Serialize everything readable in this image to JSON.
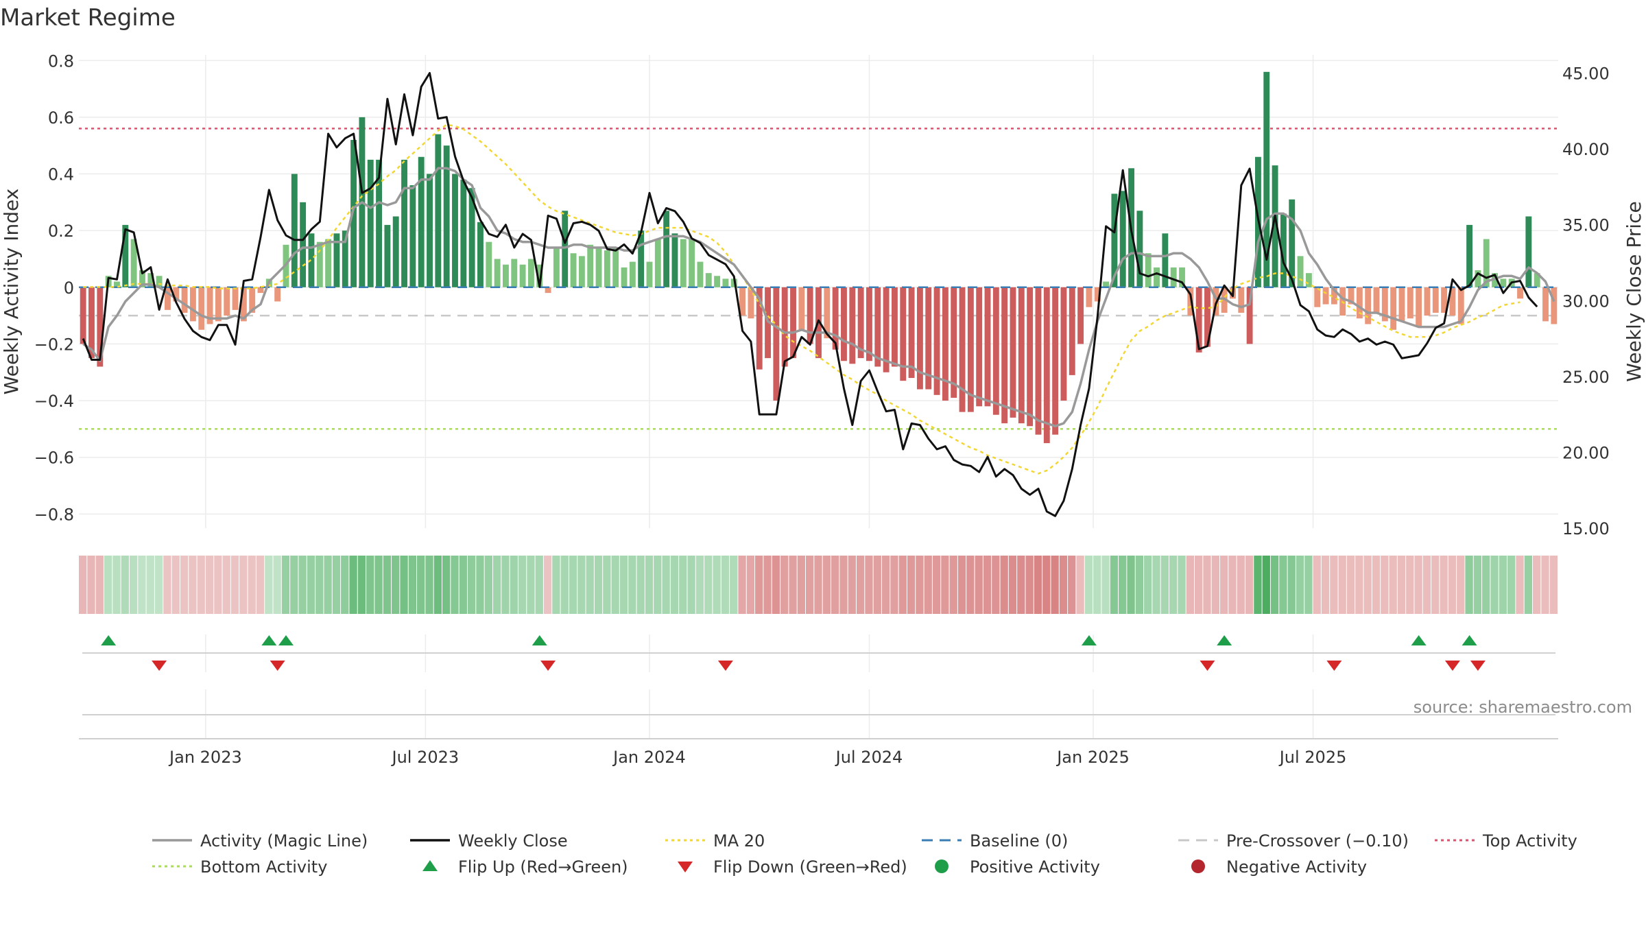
{
  "title": "Market Regime",
  "source": "source: sharemaestro.com",
  "chart_data": {
    "type": "bar",
    "title": "Market Regime",
    "x_ticks": [
      "Jan 2023",
      "Jul 2023",
      "Jan 2024",
      "Jul 2024",
      "Jan 2025",
      "Jul 2025"
    ],
    "left_axis": {
      "label": "Weekly Activity Index",
      "range": [
        -0.85,
        0.82
      ],
      "ticks": [
        "0.8",
        "0.6",
        "0.4",
        "0.2",
        "0",
        "−0.2",
        "−0.4",
        "−0.6",
        "−0.8"
      ],
      "tick_values": [
        0.8,
        0.6,
        0.4,
        0.2,
        0,
        -0.2,
        -0.4,
        -0.6,
        -0.8
      ]
    },
    "right_axis": {
      "label": "Weekly Close Price",
      "range": [
        15,
        46.2
      ],
      "ticks": [
        "45.00",
        "40.00",
        "35.00",
        "30.00",
        "25.00",
        "20.00",
        "15.00"
      ],
      "tick_values": [
        45,
        40,
        35,
        30,
        25,
        20,
        15
      ]
    },
    "reference_lines": {
      "top_activity": 0.56,
      "bottom_activity": -0.5,
      "baseline": 0,
      "pre_crossover": -0.1
    },
    "grid": true,
    "legend_position": "bottom",
    "colors": {
      "pos_dark": "#2e8b57",
      "pos_light": "#7fc47f",
      "neg_dark": "#cd5c5c",
      "neg_light": "#e9967a",
      "magic": "#999999",
      "close": "#111111",
      "ma20": "#f2d633",
      "baseline": "#3a7db5",
      "precross": "#c8c8c8",
      "top": "#d9546e",
      "bottom": "#a9dc5a",
      "flip_up": "#1f9e4a",
      "flip_down": "#d62728",
      "pos_dot": "#1f9e4a",
      "neg_dot": "#b3262e"
    },
    "activity": [
      -0.2,
      -0.25,
      -0.28,
      0.04,
      0.02,
      0.22,
      0.17,
      0.06,
      0.05,
      0.04,
      -0.08,
      -0.05,
      -0.09,
      -0.12,
      -0.15,
      -0.13,
      -0.12,
      -0.1,
      -0.08,
      -0.12,
      -0.09,
      -0.02,
      0.03,
      -0.05,
      0.15,
      0.4,
      0.3,
      0.19,
      0.16,
      0.17,
      0.19,
      0.2,
      0.52,
      0.6,
      0.45,
      0.45,
      0.22,
      0.25,
      0.45,
      0.36,
      0.46,
      0.4,
      0.54,
      0.5,
      0.4,
      0.38,
      0.35,
      0.23,
      0.16,
      0.1,
      0.08,
      0.1,
      0.08,
      0.1,
      0.08,
      -0.02,
      0.14,
      0.27,
      0.12,
      0.11,
      0.15,
      0.14,
      0.13,
      0.14,
      0.07,
      0.09,
      0.2,
      0.09,
      0.17,
      0.27,
      0.19,
      0.17,
      0.17,
      0.09,
      0.05,
      0.04,
      0.03,
      0.03,
      -0.1,
      -0.11,
      -0.29,
      -0.25,
      -0.4,
      -0.28,
      -0.25,
      -0.15,
      -0.2,
      -0.25,
      -0.18,
      -0.22,
      -0.26,
      -0.27,
      -0.25,
      -0.26,
      -0.28,
      -0.3,
      -0.28,
      -0.33,
      -0.32,
      -0.36,
      -0.36,
      -0.38,
      -0.4,
      -0.39,
      -0.44,
      -0.44,
      -0.42,
      -0.42,
      -0.45,
      -0.48,
      -0.46,
      -0.48,
      -0.49,
      -0.52,
      -0.55,
      -0.52,
      -0.4,
      -0.31,
      -0.2,
      -0.07,
      -0.05,
      0.02,
      0.33,
      0.34,
      0.42,
      0.27,
      0.12,
      0.07,
      0.19,
      0.07,
      0.07,
      -0.1,
      -0.23,
      -0.21,
      -0.1,
      -0.09,
      -0.04,
      -0.09,
      -0.2,
      0.46,
      0.76,
      0.43,
      0.26,
      0.31,
      0.11,
      0.05,
      -0.07,
      -0.06,
      -0.06,
      -0.1,
      -0.06,
      -0.11,
      -0.13,
      -0.09,
      -0.12,
      -0.15,
      -0.12,
      -0.11,
      -0.14,
      -0.1,
      -0.09,
      -0.09,
      -0.1,
      -0.13,
      0.22,
      0.06,
      0.17,
      0.05,
      0.03,
      0.03,
      -0.04,
      0.25,
      0.05,
      -0.12,
      -0.13
    ],
    "weekly_close": [
      27.5,
      26.1,
      26.1,
      31.5,
      31.4,
      34.7,
      34.5,
      31.8,
      32.2,
      29.4,
      31.4,
      29.9,
      28.8,
      28.0,
      27.6,
      27.4,
      28.4,
      28.4,
      27.1,
      31.3,
      31.4,
      34.2,
      37.3,
      35.3,
      34.3,
      34.0,
      34.0,
      34.7,
      35.2,
      41.0,
      40.1,
      40.7,
      41.0,
      37.1,
      37.4,
      38.1,
      43.3,
      40.3,
      43.6,
      40.9,
      44.1,
      45.0,
      42.0,
      42.1,
      39.5,
      37.9,
      36.8,
      35.3,
      34.4,
      34.2,
      35.0,
      33.5,
      34.4,
      34.0,
      30.9,
      35.6,
      35.4,
      33.8,
      35.1,
      35.2,
      35.0,
      34.6,
      33.4,
      33.3,
      33.7,
      33.1,
      34.5,
      37.1,
      35.1,
      36.1,
      35.9,
      35.2,
      34.1,
      33.8,
      33.0,
      32.7,
      32.4,
      31.6,
      28.0,
      27.3,
      22.5,
      22.5,
      22.5,
      26.0,
      26.3,
      27.6,
      27.1,
      28.7,
      27.8,
      27.2,
      24.2,
      21.8,
      24.7,
      25.4,
      24.0,
      22.7,
      22.8,
      20.2,
      21.9,
      21.8,
      20.9,
      20.2,
      20.4,
      19.5,
      19.2,
      19.1,
      18.7,
      19.7,
      18.4,
      18.9,
      18.5,
      17.6,
      17.2,
      17.6,
      16.1,
      15.8,
      16.8,
      18.9,
      21.8,
      24.2,
      28.9,
      34.9,
      34.5,
      38.6,
      34.6,
      31.8,
      31.6,
      31.8,
      31.6,
      31.4,
      31.2,
      30.4,
      26.8,
      27.0,
      29.8,
      31.0,
      30.3,
      37.6,
      38.7,
      35.4,
      32.7,
      35.6,
      32.5,
      31.4,
      29.7,
      29.3,
      28.1,
      27.7,
      27.6,
      28.1,
      27.8,
      27.3,
      27.5,
      27.1,
      27.3,
      27.1,
      26.2,
      26.3,
      26.4,
      27.2,
      28.2,
      28.5,
      31.4,
      30.7,
      31.0,
      31.8,
      31.5,
      31.7,
      30.5,
      31.2,
      31.3,
      30.2,
      29.6
    ],
    "magic_line": [
      -0.2,
      -0.22,
      -0.26,
      -0.14,
      -0.1,
      -0.05,
      -0.02,
      0.01,
      0.01,
      0.0,
      -0.02,
      -0.04,
      -0.06,
      -0.08,
      -0.1,
      -0.11,
      -0.11,
      -0.11,
      -0.1,
      -0.11,
      -0.08,
      -0.06,
      0.02,
      0.05,
      0.08,
      0.12,
      0.14,
      0.14,
      0.15,
      0.16,
      0.16,
      0.16,
      0.28,
      0.3,
      0.28,
      0.3,
      0.29,
      0.3,
      0.35,
      0.35,
      0.38,
      0.38,
      0.42,
      0.42,
      0.41,
      0.38,
      0.36,
      0.28,
      0.25,
      0.2,
      0.19,
      0.17,
      0.16,
      0.16,
      0.15,
      0.14,
      0.14,
      0.14,
      0.15,
      0.15,
      0.14,
      0.14,
      0.14,
      0.14,
      0.13,
      0.13,
      0.15,
      0.16,
      0.17,
      0.18,
      0.18,
      0.18,
      0.17,
      0.16,
      0.14,
      0.12,
      0.1,
      0.08,
      0.04,
      0.0,
      -0.04,
      -0.12,
      -0.14,
      -0.16,
      -0.16,
      -0.15,
      -0.16,
      -0.16,
      -0.16,
      -0.17,
      -0.19,
      -0.2,
      -0.22,
      -0.23,
      -0.25,
      -0.26,
      -0.27,
      -0.28,
      -0.28,
      -0.3,
      -0.31,
      -0.32,
      -0.33,
      -0.34,
      -0.36,
      -0.38,
      -0.39,
      -0.4,
      -0.41,
      -0.42,
      -0.43,
      -0.44,
      -0.45,
      -0.47,
      -0.48,
      -0.49,
      -0.48,
      -0.44,
      -0.34,
      -0.22,
      -0.12,
      -0.04,
      0.04,
      0.1,
      0.12,
      0.12,
      0.11,
      0.11,
      0.11,
      0.12,
      0.12,
      0.1,
      0.07,
      0.02,
      -0.04,
      -0.04,
      -0.06,
      -0.07,
      -0.06,
      0.16,
      0.24,
      0.26,
      0.26,
      0.24,
      0.2,
      0.12,
      0.08,
      0.03,
      -0.01,
      -0.04,
      -0.05,
      -0.07,
      -0.09,
      -0.09,
      -0.1,
      -0.11,
      -0.12,
      -0.13,
      -0.14,
      -0.14,
      -0.14,
      -0.14,
      -0.13,
      -0.12,
      -0.07,
      -0.01,
      0.02,
      0.03,
      0.04,
      0.04,
      0.03,
      0.07,
      0.05,
      0.02,
      -0.05
    ],
    "ma20": [
      30.9,
      30.9,
      30.9,
      30.9,
      30.9,
      31.0,
      31.1,
      31.1,
      31.1,
      31.1,
      31.0,
      31.0,
      31.0,
      30.9,
      30.9,
      30.9,
      30.8,
      30.8,
      30.8,
      30.8,
      30.8,
      30.9,
      31.0,
      31.1,
      31.5,
      31.9,
      32.3,
      32.7,
      33.3,
      34.0,
      34.8,
      35.5,
      36.2,
      36.9,
      37.3,
      37.7,
      38.2,
      38.6,
      39.2,
      39.7,
      40.2,
      40.7,
      41.2,
      41.6,
      41.5,
      41.3,
      40.9,
      40.5,
      40.0,
      39.5,
      39.0,
      38.4,
      37.8,
      37.2,
      36.6,
      36.2,
      35.9,
      35.7,
      35.5,
      35.3,
      35.1,
      34.9,
      34.7,
      34.5,
      34.4,
      34.3,
      34.4,
      34.6,
      34.8,
      34.8,
      34.8,
      34.8,
      34.6,
      34.4,
      34.2,
      33.8,
      33.2,
      32.4,
      31.6,
      30.7,
      29.8,
      29.0,
      28.4,
      27.7,
      27.3,
      27.0,
      26.7,
      26.3,
      25.9,
      25.5,
      25.1,
      24.8,
      24.4,
      24.1,
      23.8,
      23.4,
      23.1,
      22.8,
      22.5,
      22.1,
      21.8,
      21.5,
      21.2,
      20.9,
      20.6,
      20.3,
      20.1,
      19.8,
      19.6,
      19.4,
      19.2,
      19.0,
      18.8,
      18.6,
      18.8,
      19.2,
      19.7,
      20.3,
      21.1,
      22.0,
      23.0,
      24.2,
      25.3,
      26.4,
      27.4,
      28.0,
      28.3,
      28.7,
      29.0,
      29.2,
      29.4,
      29.6,
      29.5,
      29.5,
      29.6,
      30.2,
      30.8,
      31.1,
      31.3,
      31.5,
      31.6,
      31.8,
      31.8,
      31.6,
      31.4,
      31.1,
      30.8,
      30.5,
      30.2,
      29.9,
      29.5,
      29.2,
      28.9,
      28.6,
      28.3,
      28.0,
      27.8,
      27.6,
      27.6,
      27.6,
      27.7,
      27.9,
      28.2,
      28.4,
      28.6,
      28.9,
      29.1,
      29.4,
      29.7,
      29.8,
      29.9
    ],
    "regime": [
      -0.3,
      -0.3,
      -0.3,
      0.2,
      0.2,
      0.25,
      0.2,
      0.15,
      0.15,
      0.15,
      -0.2,
      -0.2,
      -0.2,
      -0.2,
      -0.2,
      -0.2,
      -0.2,
      -0.2,
      -0.2,
      -0.2,
      -0.2,
      -0.2,
      0.15,
      0.15,
      0.4,
      0.4,
      0.4,
      0.4,
      0.4,
      0.4,
      0.4,
      0.45,
      0.65,
      0.65,
      0.55,
      0.55,
      0.55,
      0.55,
      0.6,
      0.55,
      0.55,
      0.55,
      0.65,
      0.6,
      0.5,
      0.5,
      0.45,
      0.45,
      0.4,
      0.35,
      0.35,
      0.35,
      0.3,
      0.3,
      0.3,
      -0.2,
      0.3,
      0.3,
      0.3,
      0.3,
      0.3,
      0.3,
      0.3,
      0.3,
      0.3,
      0.3,
      0.3,
      0.3,
      0.3,
      0.3,
      0.3,
      0.3,
      0.3,
      0.25,
      0.25,
      0.25,
      0.25,
      0.25,
      -0.4,
      -0.4,
      -0.5,
      -0.5,
      -0.55,
      -0.45,
      -0.45,
      -0.45,
      -0.45,
      -0.45,
      -0.45,
      -0.45,
      -0.45,
      -0.45,
      -0.45,
      -0.45,
      -0.45,
      -0.45,
      -0.45,
      -0.5,
      -0.5,
      -0.5,
      -0.5,
      -0.5,
      -0.5,
      -0.5,
      -0.55,
      -0.55,
      -0.55,
      -0.55,
      -0.55,
      -0.6,
      -0.6,
      -0.6,
      -0.6,
      -0.65,
      -0.65,
      -0.65,
      -0.6,
      -0.55,
      -0.25,
      0.2,
      0.2,
      0.2,
      0.5,
      0.5,
      0.55,
      0.45,
      0.35,
      0.3,
      0.3,
      0.3,
      0.3,
      -0.3,
      -0.3,
      -0.3,
      -0.3,
      -0.3,
      -0.3,
      -0.3,
      -0.3,
      0.75,
      0.85,
      0.6,
      0.5,
      0.5,
      0.4,
      0.4,
      -0.25,
      -0.25,
      -0.25,
      -0.25,
      -0.25,
      -0.25,
      -0.25,
      -0.25,
      -0.25,
      -0.25,
      -0.25,
      -0.25,
      -0.25,
      -0.25,
      -0.25,
      -0.25,
      -0.25,
      -0.25,
      0.45,
      0.4,
      0.4,
      0.35,
      0.35,
      0.35,
      -0.25,
      0.4,
      -0.25,
      -0.25,
      -0.25
    ],
    "flip_up_weeks": [
      3,
      22,
      24,
      54,
      119,
      135,
      158,
      164
    ],
    "flip_down_weeks": [
      9,
      23,
      55,
      76,
      133,
      148,
      162,
      165
    ],
    "x_tick_weeks": [
      15.0,
      41.0,
      67.5,
      93.5,
      120.0,
      146.0
    ],
    "legend": [
      {
        "key": "magic",
        "label": "Activity (Magic Line)",
        "style": "line"
      },
      {
        "key": "close",
        "label": "Weekly Close",
        "style": "line"
      },
      {
        "key": "ma20",
        "label": "MA 20",
        "style": "dotted"
      },
      {
        "key": "baseline",
        "label": "Baseline (0)",
        "style": "dashed"
      },
      {
        "key": "precross",
        "label": "Pre-Crossover (−0.10)",
        "style": "dashed"
      },
      {
        "key": "top",
        "label": "Top Activity",
        "style": "dotted"
      },
      {
        "key": "bottom",
        "label": "Bottom Activity",
        "style": "dotted"
      },
      {
        "key": "flip_up",
        "label": "Flip Up (Red→Green)",
        "style": "tri-up"
      },
      {
        "key": "flip_down",
        "label": "Flip Down (Green→Red)",
        "style": "tri-down"
      },
      {
        "key": "pos_dot",
        "label": "Positive Activity",
        "style": "dot"
      },
      {
        "key": "neg_dot",
        "label": "Negative Activity",
        "style": "dot"
      }
    ]
  }
}
